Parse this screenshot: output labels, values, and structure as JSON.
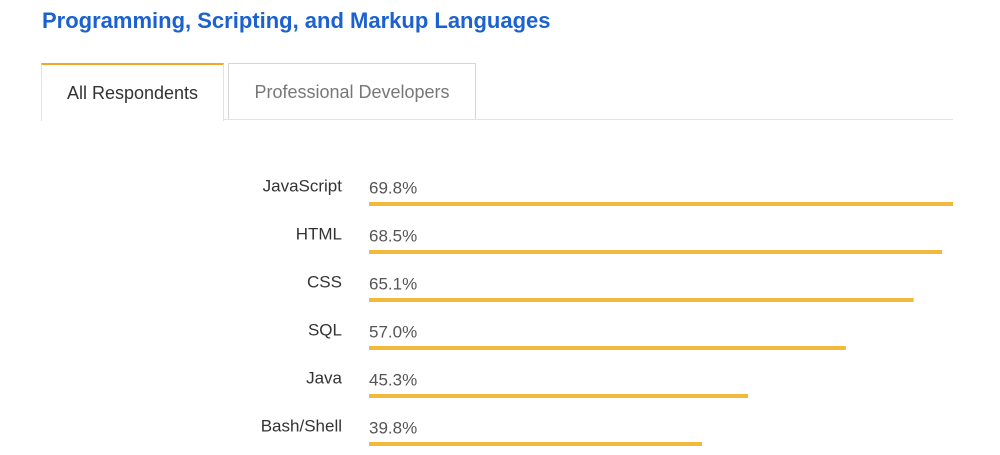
{
  "header": {
    "title": "Programming, Scripting, and Markup Languages"
  },
  "tabs": [
    {
      "label": "All Respondents",
      "active": true
    },
    {
      "label": "Professional Developers",
      "active": false
    }
  ],
  "chart_data": {
    "type": "bar",
    "orientation": "horizontal",
    "categories": [
      "JavaScript",
      "HTML",
      "CSS",
      "SQL",
      "Java",
      "Bash/Shell"
    ],
    "values": [
      69.8,
      68.5,
      65.1,
      57.0,
      45.3,
      39.8
    ],
    "value_labels": [
      "69.8%",
      "68.5%",
      "65.1%",
      "57.0%",
      "45.3%",
      "39.8%"
    ],
    "color": "#f4b83c"
  }
}
